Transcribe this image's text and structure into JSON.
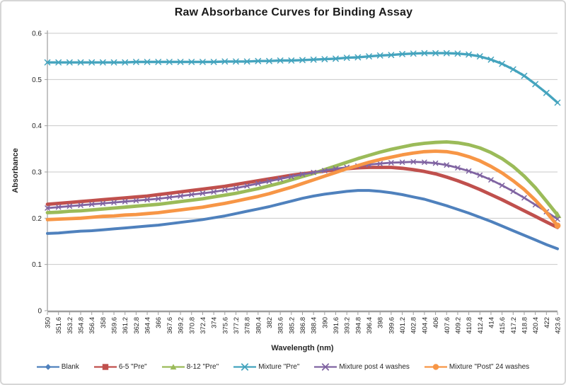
{
  "chart_data": {
    "type": "line",
    "title": "Raw Absorbance Curves for Binding Assay",
    "xlabel": "Wavelength (nm)",
    "ylabel": "Absorbance",
    "ylim": [
      0,
      0.6
    ],
    "ytick_step": 0.1,
    "ytick_labels": [
      "0",
      "0.1",
      "0.2",
      "0.3",
      "0.4",
      "0.5",
      "0.6"
    ],
    "grid": true,
    "legend_position": "bottom",
    "x": [
      350,
      351.6,
      353.2,
      354.8,
      356.4,
      358,
      359.6,
      361.2,
      362.8,
      364.4,
      366,
      367.6,
      369.2,
      370.8,
      372.4,
      374,
      375.6,
      377.2,
      378.8,
      380.4,
      382,
      383.6,
      385.2,
      386.8,
      388.4,
      390,
      391.6,
      393.2,
      394.8,
      396.4,
      398,
      399.6,
      401.2,
      402.8,
      404.4,
      406,
      407.6,
      409.2,
      410.8,
      412.4,
      414,
      415.6,
      417.2,
      418.8,
      420.4,
      422,
      423.6
    ],
    "series": [
      {
        "name": "Blank",
        "color": "#4F81BD",
        "marker": "diamond",
        "marker_mode": "legend-only",
        "values": [
          0.167,
          0.168,
          0.17,
          0.172,
          0.173,
          0.175,
          0.177,
          0.179,
          0.181,
          0.183,
          0.185,
          0.188,
          0.191,
          0.194,
          0.197,
          0.201,
          0.205,
          0.21,
          0.215,
          0.22,
          0.225,
          0.231,
          0.237,
          0.243,
          0.248,
          0.252,
          0.255,
          0.258,
          0.26,
          0.26,
          0.258,
          0.255,
          0.251,
          0.246,
          0.241,
          0.234,
          0.227,
          0.219,
          0.211,
          0.202,
          0.193,
          0.183,
          0.173,
          0.163,
          0.153,
          0.143,
          0.134
        ]
      },
      {
        "name": "6-5 \"Pre\"",
        "color": "#C0504D",
        "marker": "square",
        "marker_mode": "legend-only",
        "values": [
          0.23,
          0.232,
          0.234,
          0.236,
          0.238,
          0.24,
          0.242,
          0.244,
          0.246,
          0.248,
          0.251,
          0.254,
          0.257,
          0.26,
          0.263,
          0.266,
          0.269,
          0.273,
          0.277,
          0.281,
          0.285,
          0.289,
          0.293,
          0.296,
          0.299,
          0.302,
          0.305,
          0.307,
          0.309,
          0.31,
          0.31,
          0.31,
          0.308,
          0.305,
          0.301,
          0.296,
          0.289,
          0.281,
          0.272,
          0.262,
          0.251,
          0.24,
          0.228,
          0.216,
          0.204,
          0.192,
          0.18
        ]
      },
      {
        "name": "8-12 \"Pre\"",
        "color": "#9BBB59",
        "marker": "triangle",
        "marker_mode": "end",
        "values": [
          0.212,
          0.213,
          0.215,
          0.216,
          0.218,
          0.22,
          0.222,
          0.224,
          0.226,
          0.228,
          0.23,
          0.233,
          0.236,
          0.239,
          0.242,
          0.246,
          0.25,
          0.254,
          0.259,
          0.264,
          0.27,
          0.276,
          0.283,
          0.29,
          0.297,
          0.305,
          0.313,
          0.321,
          0.329,
          0.336,
          0.343,
          0.349,
          0.354,
          0.359,
          0.362,
          0.364,
          0.365,
          0.363,
          0.359,
          0.352,
          0.342,
          0.329,
          0.312,
          0.291,
          0.266,
          0.237,
          0.207
        ]
      },
      {
        "name": "Mixture \"Pre\"",
        "color": "#45A4BE",
        "marker": "x",
        "marker_mode": "all",
        "values": [
          0.537,
          0.537,
          0.537,
          0.537,
          0.537,
          0.537,
          0.537,
          0.537,
          0.538,
          0.538,
          0.538,
          0.538,
          0.538,
          0.538,
          0.538,
          0.538,
          0.539,
          0.539,
          0.539,
          0.54,
          0.54,
          0.541,
          0.541,
          0.542,
          0.543,
          0.544,
          0.545,
          0.547,
          0.548,
          0.55,
          0.552,
          0.553,
          0.555,
          0.556,
          0.557,
          0.557,
          0.557,
          0.556,
          0.554,
          0.55,
          0.543,
          0.534,
          0.522,
          0.508,
          0.49,
          0.471,
          0.45
        ]
      },
      {
        "name": "Mixture post 4 washes",
        "color": "#8064A2",
        "marker": "x",
        "marker_mode": "all",
        "values": [
          0.222,
          0.224,
          0.226,
          0.228,
          0.23,
          0.232,
          0.234,
          0.236,
          0.238,
          0.24,
          0.242,
          0.245,
          0.248,
          0.251,
          0.254,
          0.257,
          0.261,
          0.265,
          0.27,
          0.275,
          0.28,
          0.285,
          0.29,
          0.295,
          0.299,
          0.303,
          0.307,
          0.31,
          0.313,
          0.316,
          0.318,
          0.32,
          0.321,
          0.322,
          0.321,
          0.319,
          0.315,
          0.309,
          0.302,
          0.293,
          0.283,
          0.271,
          0.258,
          0.244,
          0.229,
          0.214,
          0.198
        ]
      },
      {
        "name": "Mixture \"Post\" 24 washes",
        "color": "#F79646",
        "marker": "circle",
        "marker_mode": "end",
        "values": [
          0.197,
          0.198,
          0.199,
          0.2,
          0.202,
          0.204,
          0.205,
          0.207,
          0.208,
          0.21,
          0.212,
          0.215,
          0.218,
          0.221,
          0.224,
          0.228,
          0.232,
          0.237,
          0.242,
          0.247,
          0.253,
          0.26,
          0.267,
          0.275,
          0.283,
          0.291,
          0.299,
          0.307,
          0.314,
          0.321,
          0.327,
          0.332,
          0.337,
          0.341,
          0.344,
          0.345,
          0.344,
          0.34,
          0.333,
          0.324,
          0.312,
          0.298,
          0.281,
          0.262,
          0.239,
          0.213,
          0.184
        ]
      }
    ],
    "colors": {
      "grid": "#c9c9c9",
      "axis": "#9e9e9e",
      "text": "#262626",
      "frame_border": "#d6d6d6",
      "background": "#ffffff"
    }
  }
}
